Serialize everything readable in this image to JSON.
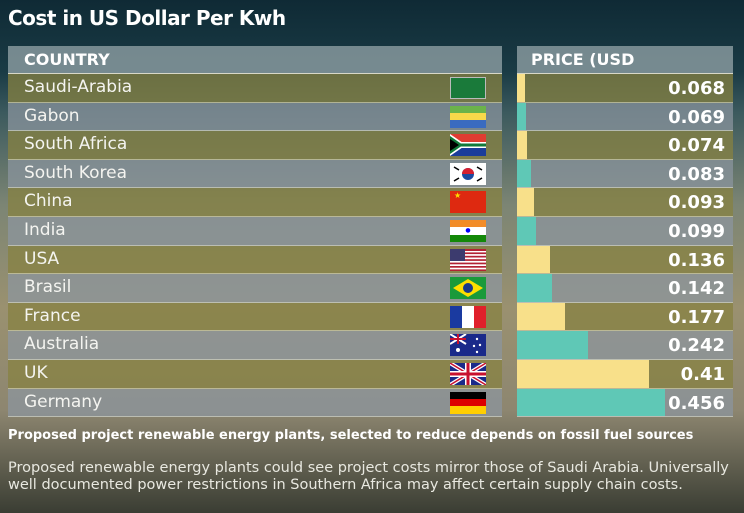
{
  "title": "Cost in US Dollar Per Kwh",
  "chart_data": {
    "type": "bar",
    "orientation": "horizontal",
    "title": "Cost in US Dollar Per Kwh",
    "category_header": "COUNTRY",
    "value_header": "PRICE (USD",
    "categories": [
      "Saudi-Arabia",
      "Gabon",
      "South Africa",
      "South Korea",
      "China",
      "India",
      "USA",
      "Brasil",
      "France",
      "Australia",
      "UK",
      "Germany"
    ],
    "values": [
      0.068,
      0.069,
      0.074,
      0.083,
      0.093,
      0.099,
      0.136,
      0.142,
      0.177,
      0.242,
      0.41,
      0.456
    ],
    "value_labels": [
      "0.068",
      "0.069",
      "0.074",
      "0.083",
      "0.093",
      "0.099",
      "0.136",
      "0.142",
      "0.177",
      "0.242",
      "0.41",
      "0.456"
    ],
    "bar_colors": [
      "#f8e08a",
      "#5fc8b6"
    ]
  },
  "subtitle": "Proposed project renewable energy plants, selected to reduce depends on fossil fuel sources",
  "note": "Proposed renewable energy plants could see project costs mirror those of Saudi Arabia. Universally well documented power restrictions in Southern Africa may affect certain supply chain costs."
}
